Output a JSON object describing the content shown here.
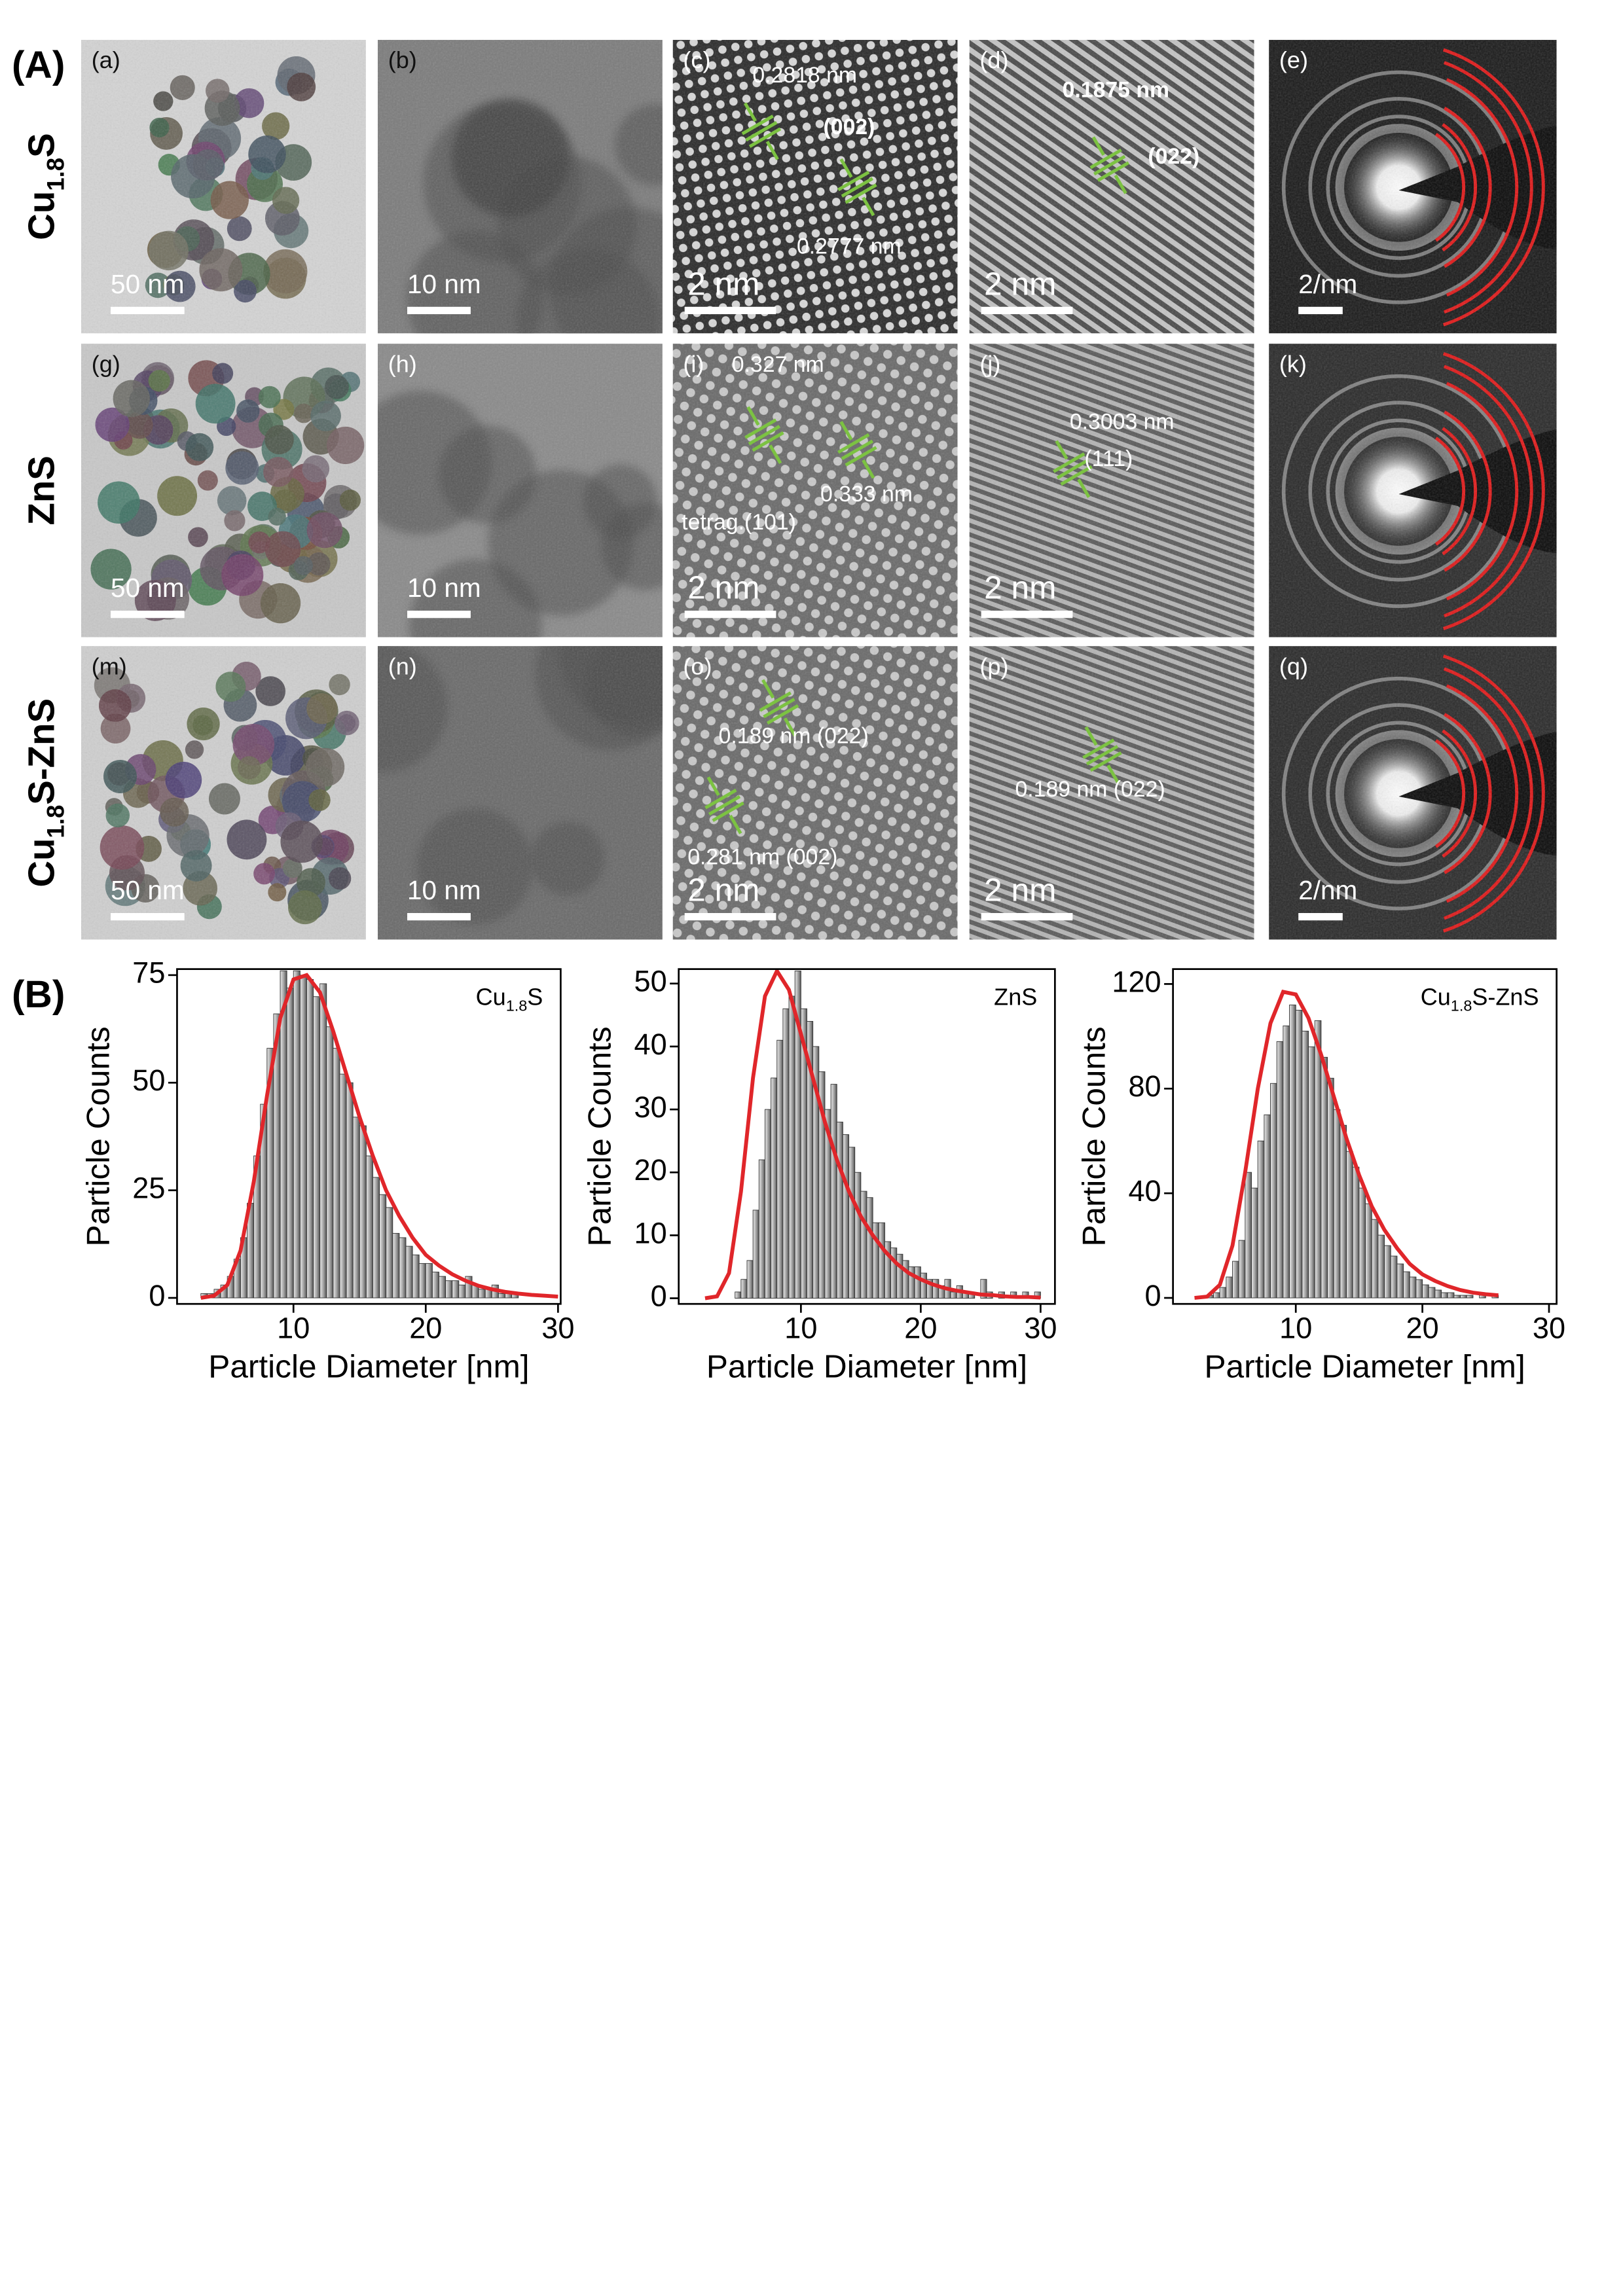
{
  "panel_a": {
    "label": "(A)",
    "rows": [
      {
        "label": "Cu1.8S"
      },
      {
        "label": "ZnS"
      },
      {
        "label": "Cu1.8S-ZnS"
      }
    ],
    "panels": [
      {
        "letter": "(a)",
        "scale_bar": "50 nm"
      },
      {
        "letter": "(b)",
        "scale_bar": "10 nm"
      },
      {
        "letter": "(c)",
        "scale_bar": "2 nm",
        "annotations": [
          "0.2818 nm",
          "(002)",
          "0.2777 nm"
        ]
      },
      {
        "letter": "(d)",
        "scale_bar": "2 nm",
        "annotations": [
          "0.1875 nm",
          "(022)"
        ]
      },
      {
        "letter": "(e)",
        "scale_bar": "2/nm"
      },
      {
        "letter": "(g)",
        "scale_bar": "50 nm"
      },
      {
        "letter": "(h)",
        "scale_bar": "10 nm"
      },
      {
        "letter": "(i)",
        "scale_bar": "2 nm",
        "annotations": [
          "0.327 nm",
          "0.333 nm",
          "tetrag.(101)"
        ]
      },
      {
        "letter": "(j)",
        "scale_bar": "2 nm",
        "annotations": [
          "0.3003 nm",
          "(111)"
        ]
      },
      {
        "letter": "(k)"
      },
      {
        "letter": "(m)",
        "scale_bar": "50 nm"
      },
      {
        "letter": "(n)",
        "scale_bar": "10 nm"
      },
      {
        "letter": "(o)",
        "scale_bar": "2 nm",
        "annotations": [
          "0.189 nm (022)",
          "0.281 nm (002)"
        ]
      },
      {
        "letter": "(p)",
        "scale_bar": "2 nm",
        "annotations": [
          "0.189 nm (022)"
        ]
      },
      {
        "letter": "(q)",
        "scale_bar": "2/nm"
      }
    ]
  },
  "panel_b": {
    "label": "(B)"
  },
  "chart_data": [
    {
      "type": "histogram",
      "title": "Cu1.8S",
      "xlabel": "Particle Diameter [nm]",
      "ylabel": "Particle Counts",
      "color": "#9a9a9a",
      "bins": [
        3,
        3.5,
        4,
        4.5,
        5,
        5.5,
        6,
        6.5,
        7,
        7.5,
        8,
        8.5,
        9,
        9.5,
        10,
        10.5,
        11,
        11.5,
        12,
        12.5,
        13,
        13.5,
        14,
        14.5,
        15,
        15.5,
        16,
        16.5,
        17,
        17.5,
        18,
        18.5,
        19,
        19.5,
        20,
        20.5,
        21,
        21.5,
        22,
        22.5,
        23,
        23.5,
        24,
        24.5,
        25,
        25.5,
        26,
        26.5,
        27
      ],
      "values": [
        1,
        1,
        2,
        3,
        5,
        9,
        14,
        22,
        33,
        45,
        58,
        66,
        76,
        72,
        76,
        75,
        74,
        70,
        73,
        63,
        58,
        52,
        50,
        42,
        40,
        33,
        28,
        24,
        21,
        15,
        14,
        12,
        10,
        8,
        8,
        6,
        5,
        4,
        4,
        3,
        5,
        3,
        2,
        2,
        3,
        1,
        1,
        1
      ],
      "fit": {
        "color": "#e0262a",
        "x": [
          3,
          4,
          5,
          6,
          7,
          8,
          9,
          10,
          11,
          12,
          13,
          14,
          15,
          16,
          17,
          18,
          19,
          20,
          21,
          22,
          23,
          24,
          25,
          26,
          27,
          28,
          29,
          30
        ],
        "values": [
          0,
          0.5,
          3,
          11,
          27,
          47,
          65,
          74,
          75,
          71,
          62,
          52,
          42,
          33,
          25,
          19,
          14,
          10,
          7.5,
          5.5,
          4,
          2.8,
          2,
          1.4,
          1,
          0.7,
          0.5,
          0.3
        ]
      },
      "xlim": [
        1.2,
        30.2
      ],
      "ylim": [
        -1.4,
        76.4
      ],
      "xticks": [
        10,
        20,
        30
      ],
      "yticks": [
        0,
        25,
        50,
        75
      ]
    },
    {
      "type": "histogram",
      "title": "ZnS",
      "xlabel": "Particle Diameter [nm]",
      "ylabel": "Particle Counts",
      "color": "#9a9a9a",
      "bins": [
        4.5,
        5,
        5.5,
        6,
        6.5,
        7,
        7.5,
        8,
        8.5,
        9,
        9.5,
        10,
        10.5,
        11,
        11.5,
        12,
        12.5,
        13,
        13.5,
        14,
        14.5,
        15,
        15.5,
        16,
        16.5,
        17,
        17.5,
        18,
        18.5,
        19,
        19.5,
        20,
        20.5,
        21,
        21.5,
        22,
        22.5,
        23,
        23.5,
        24,
        24.5,
        25,
        25.5,
        26,
        26.5,
        27,
        27.5,
        28,
        28.5,
        29,
        29.5,
        30
      ],
      "values": [
        1,
        3,
        6,
        14,
        22,
        30,
        35,
        41,
        46,
        48,
        52,
        46,
        44,
        40,
        36,
        30,
        34,
        28,
        26,
        24,
        20,
        17,
        16,
        12,
        12,
        9,
        8,
        7,
        6,
        5,
        5,
        4,
        3,
        3,
        2,
        3,
        1,
        2,
        1,
        1,
        0,
        3,
        1,
        0,
        1,
        0,
        1,
        0,
        1,
        0,
        1
      ],
      "fit": {
        "color": "#e0262a",
        "x": [
          2,
          3,
          4,
          5,
          6,
          7,
          8,
          9,
          10,
          11,
          12,
          13,
          14,
          15,
          16,
          17,
          18,
          19,
          20,
          21,
          22,
          23,
          24,
          25,
          26,
          27,
          28,
          29,
          30
        ],
        "values": [
          0,
          0.3,
          4,
          17,
          35,
          48,
          52,
          49,
          42,
          35,
          28,
          22,
          17,
          13,
          10,
          7.5,
          5.5,
          4,
          3,
          2.2,
          1.6,
          1.2,
          0.9,
          0.6,
          0.5,
          0.3,
          0.2,
          0.2,
          0.1
        ]
      },
      "xlim": [
        -0.2,
        31.2
      ],
      "ylim": [
        -0.9,
        52.3
      ],
      "xticks": [
        10,
        20,
        30
      ],
      "yticks": [
        0,
        10,
        20,
        30,
        40,
        50
      ]
    },
    {
      "type": "histogram",
      "title": "Cu1.8S-ZnS",
      "xlabel": "Particle Diameter [nm]",
      "ylabel": "Particle Counts",
      "color": "#9a9a9a",
      "bins": [
        3,
        3.5,
        4,
        4.5,
        5,
        5.5,
        6,
        6.5,
        7,
        7.5,
        8,
        8.5,
        9,
        9.5,
        10,
        10.5,
        11,
        11.5,
        12,
        12.5,
        13,
        13.5,
        14,
        14.5,
        15,
        15.5,
        16,
        16.5,
        17,
        17.5,
        18,
        18.5,
        19,
        19.5,
        20,
        20.5,
        21,
        21.5,
        22,
        22.5,
        23,
        23.5,
        24,
        24.5,
        25,
        25.5,
        26
      ],
      "values": [
        1,
        2,
        4,
        8,
        14,
        22,
        48,
        42,
        60,
        70,
        82,
        98,
        104,
        112,
        110,
        102,
        96,
        106,
        92,
        84,
        72,
        66,
        56,
        50,
        42,
        36,
        30,
        24,
        20,
        16,
        13,
        10,
        8,
        7,
        5,
        4,
        3,
        2,
        2,
        1,
        1,
        1,
        0,
        1,
        0,
        1
      ],
      "fit": {
        "color": "#e0262a",
        "x": [
          2,
          3,
          4,
          5,
          6,
          7,
          8,
          9,
          10,
          11,
          12,
          13,
          14,
          15,
          16,
          17,
          18,
          19,
          20,
          21,
          22,
          23,
          24,
          25,
          26
        ],
        "values": [
          0,
          0.5,
          5,
          20,
          48,
          80,
          105,
          117,
          116,
          107,
          93,
          77,
          61,
          47,
          35,
          26,
          19,
          13,
          9,
          6.5,
          4.5,
          3,
          2,
          1.4,
          1
        ]
      },
      "xlim": [
        0.3,
        30.6
      ],
      "ylim": [
        -2.3,
        125.7
      ],
      "xticks": [
        10,
        20,
        30
      ],
      "yticks": [
        0,
        40,
        80,
        120
      ]
    }
  ]
}
